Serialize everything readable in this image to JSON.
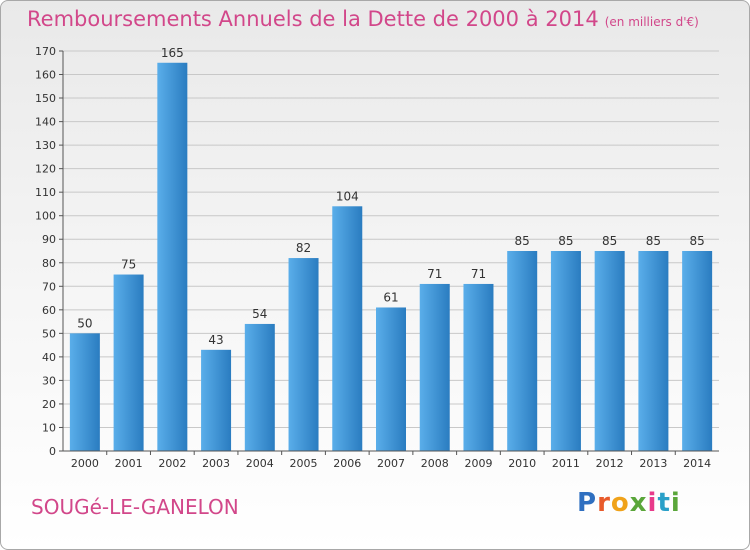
{
  "header": {
    "title": "Remboursements Annuels de la Dette de 2000 à 2014",
    "subtitle": "(en milliers d'€)"
  },
  "footer": {
    "commune": "SOUGé-LE-GANELON",
    "logo": [
      "P",
      "r",
      "o",
      "x",
      "i",
      "t",
      "i"
    ]
  },
  "chart_data": {
    "type": "bar",
    "title": "Remboursements Annuels de la Dette de 2000 à 2014",
    "subtitle": "(en milliers d'€)",
    "categories": [
      "2000",
      "2001",
      "2002",
      "2003",
      "2004",
      "2005",
      "2006",
      "2007",
      "2008",
      "2009",
      "2010",
      "2011",
      "2012",
      "2013",
      "2014"
    ],
    "values": [
      50,
      75,
      165,
      43,
      54,
      82,
      104,
      61,
      71,
      71,
      85,
      85,
      85,
      85,
      85
    ],
    "ylim": [
      0,
      170
    ],
    "yticks": [
      0,
      10,
      20,
      30,
      40,
      50,
      60,
      70,
      80,
      90,
      100,
      110,
      120,
      130,
      140,
      150,
      160,
      170
    ],
    "grid": true,
    "colors": {
      "bar_top": "#5aaeea",
      "bar_bottom": "#2a7cc0",
      "grid": "#c8c8c8",
      "title": "#d2478a"
    }
  }
}
